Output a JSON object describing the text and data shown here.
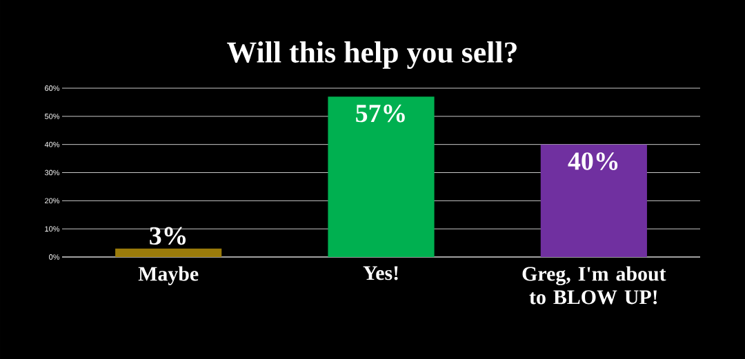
{
  "chart_data": {
    "type": "bar",
    "title": "Will this help you sell?",
    "categories": [
      "Maybe",
      "Yes!",
      "Greg, I'm about to BLOW UP!"
    ],
    "values": [
      3,
      57,
      40
    ],
    "colors": [
      "#9a7b0b",
      "#00b050",
      "#7030a0"
    ],
    "value_labels": [
      "3%",
      "57%",
      "40%"
    ],
    "ylim": [
      0,
      60
    ],
    "yticks": [
      {
        "value": 0,
        "label": "0%"
      },
      {
        "value": 10,
        "label": "10%"
      },
      {
        "value": 20,
        "label": "20%"
      },
      {
        "value": 30,
        "label": "30%"
      },
      {
        "value": 40,
        "label": "40%"
      },
      {
        "value": 50,
        "label": "50%"
      },
      {
        "value": 60,
        "label": "60%"
      }
    ],
    "grid": "y"
  }
}
